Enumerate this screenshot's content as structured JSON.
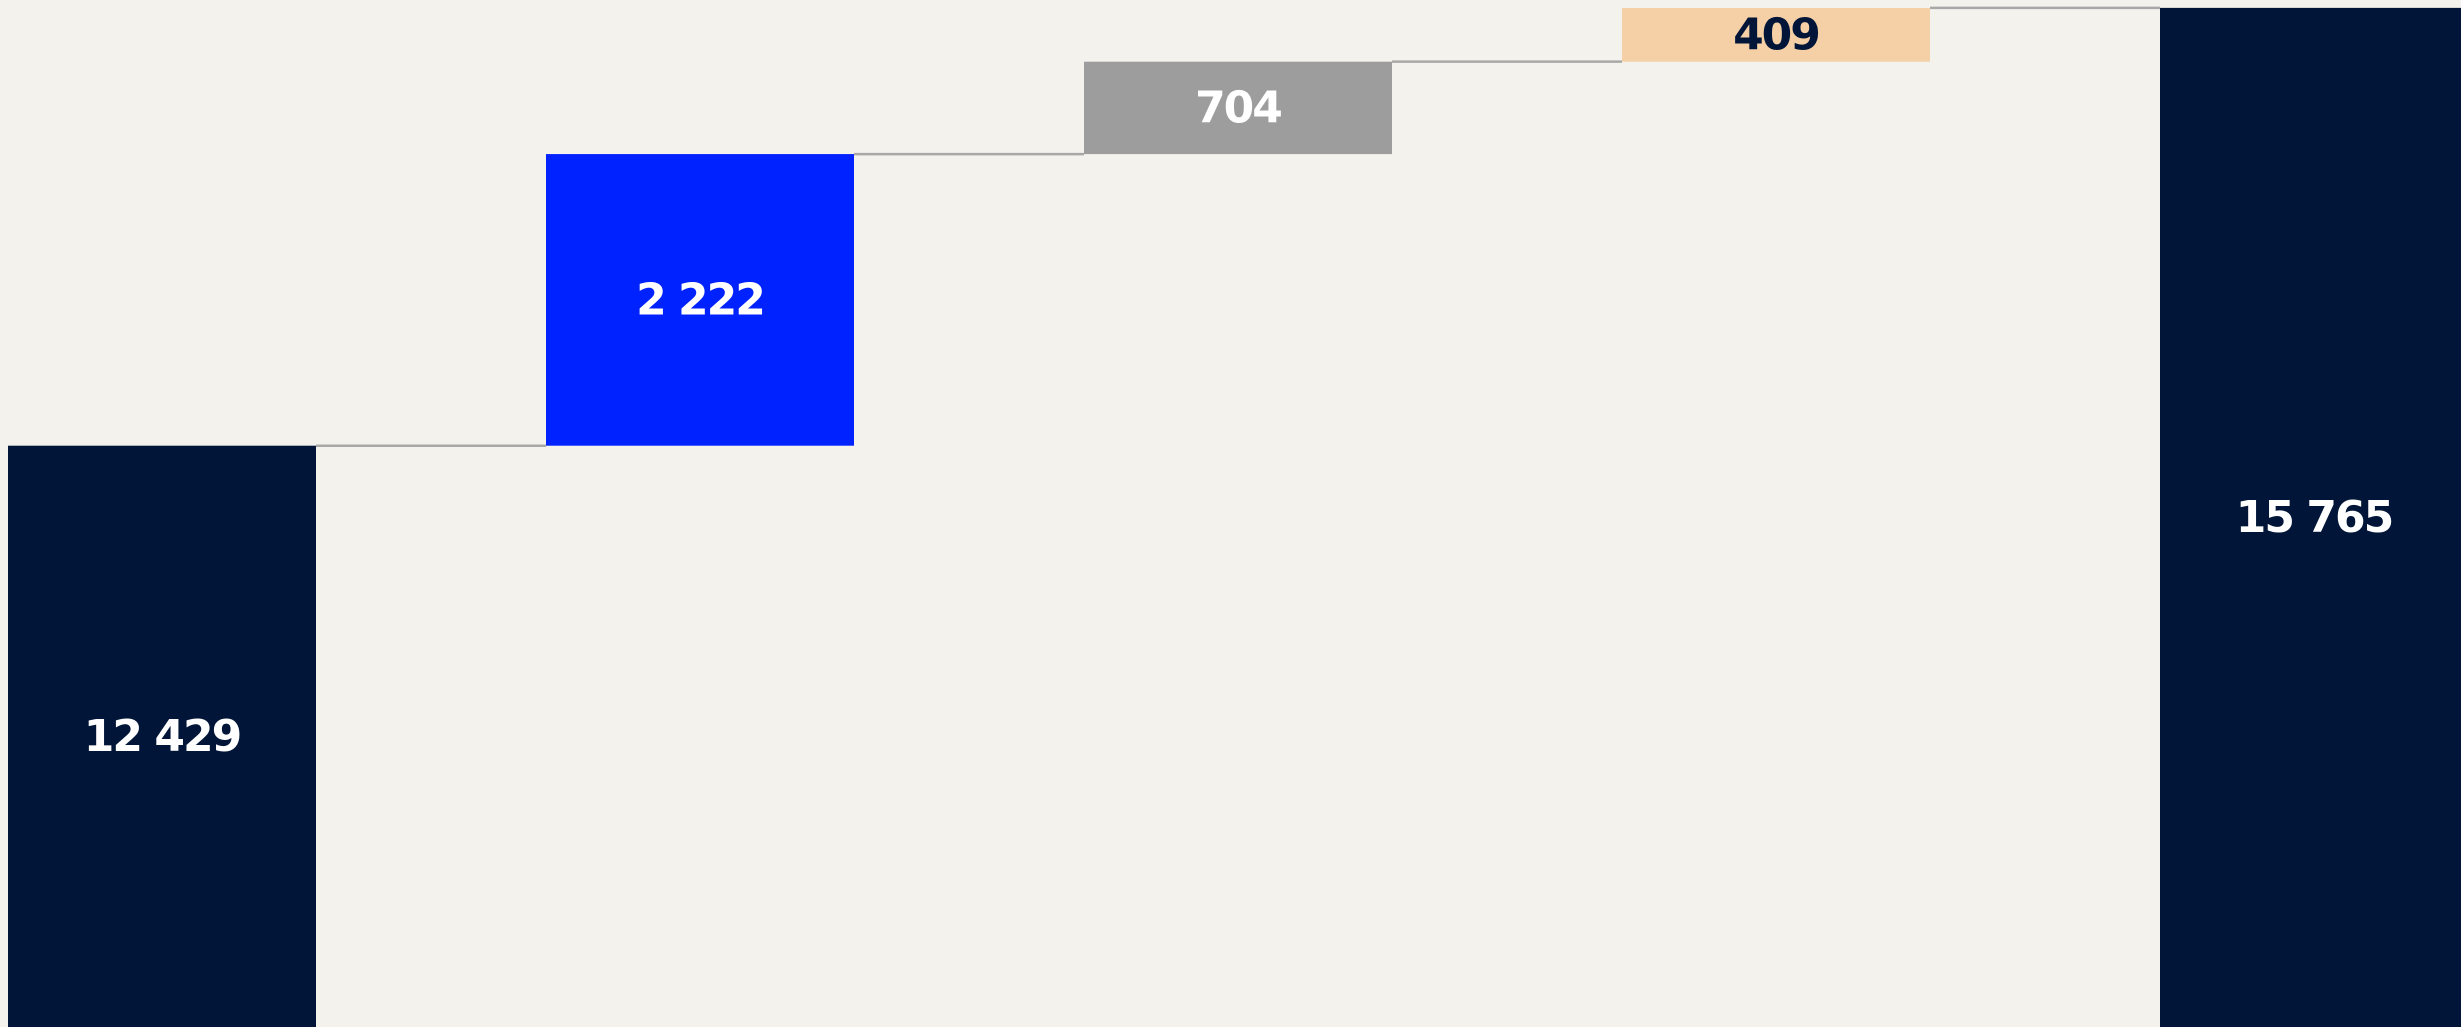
{
  "chart_data": {
    "type": "waterfall",
    "categories": [
      null,
      null,
      null,
      null,
      null
    ],
    "values": [
      12429,
      2222,
      704,
      409,
      15765
    ],
    "value_labels": [
      "12 429",
      "2 222",
      "704",
      "409",
      "15 765"
    ],
    "totals": [
      true,
      false,
      false,
      false,
      true
    ],
    "colors": [
      "#001537",
      "#0022ff",
      "#9d9d9d",
      "#f5cfa5",
      "#001537"
    ],
    "label_colors": [
      "#ffffff",
      "#ffffff",
      "#ffffff",
      "#001537",
      "#ffffff"
    ],
    "ylim": [
      8000,
      15825
    ]
  }
}
